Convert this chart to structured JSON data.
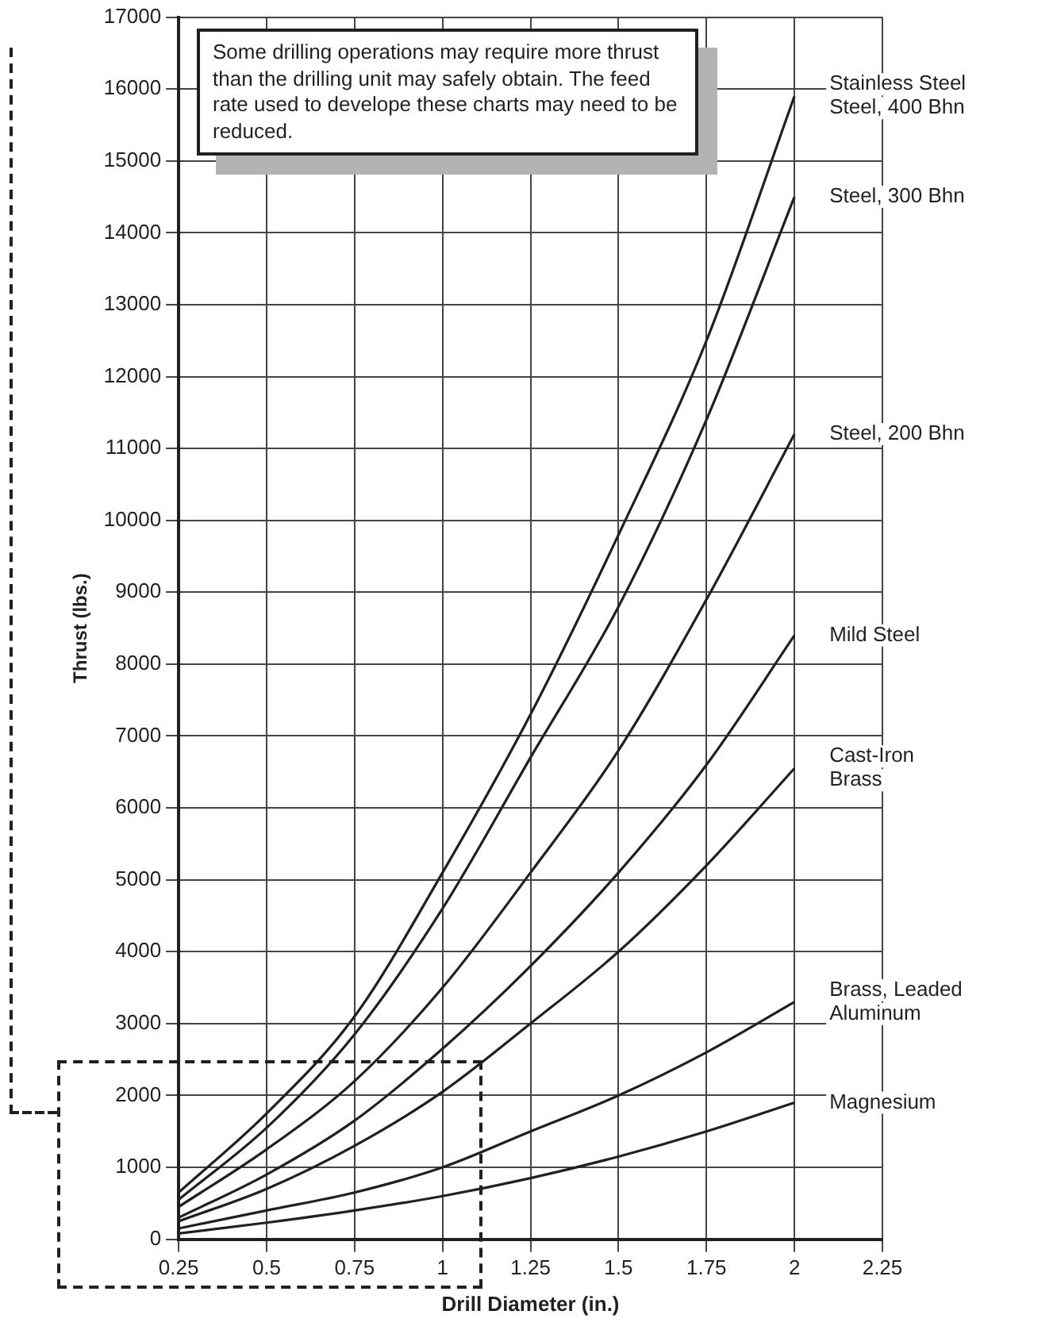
{
  "chart_data": {
    "type": "line",
    "xlabel": "Drill Diameter (in.)",
    "ylabel": "Thrust (lbs.)",
    "x": [
      0.25,
      0.5,
      0.75,
      1,
      1.25,
      1.5,
      1.75,
      2
    ],
    "xlim": [
      0.25,
      2.25
    ],
    "xticks": [
      0.25,
      0.5,
      0.75,
      1,
      1.25,
      1.5,
      1.75,
      2,
      2.25
    ],
    "ylim": [
      0,
      17000
    ],
    "yticks": [
      0,
      1000,
      2000,
      3000,
      4000,
      5000,
      6000,
      7000,
      8000,
      9000,
      10000,
      11000,
      12000,
      13000,
      14000,
      15000,
      16000,
      17000
    ],
    "grid": true,
    "legend": false,
    "marker": "none",
    "line_style": "solid",
    "annotations": [
      "Some drilling operations may require more thrust than the drilling unit may safely obtain. The feed rate used to develope these charts may need to be reduced."
    ],
    "series": [
      {
        "name": "Stainless Steel\nSteel, 400 Bhn",
        "color": "#231f20",
        "values": [
          650,
          1750,
          3100,
          5100,
          7300,
          9800,
          12500,
          15900
        ]
      },
      {
        "name": "Steel, 300 Bhn",
        "color": "#231f20",
        "values": [
          550,
          1550,
          2850,
          4600,
          6700,
          8800,
          11400,
          14500
        ]
      },
      {
        "name": "Steel, 200 Bhn",
        "color": "#231f20",
        "values": [
          450,
          1250,
          2200,
          3500,
          5100,
          6800,
          8900,
          11200
        ]
      },
      {
        "name": "Mild Steel",
        "color": "#231f20",
        "values": [
          300,
          900,
          1650,
          2650,
          3800,
          5100,
          6600,
          8400
        ]
      },
      {
        "name": "Cast-Iron\nBrass",
        "color": "#231f20",
        "values": [
          250,
          700,
          1300,
          2050,
          3000,
          4000,
          5200,
          6550
        ]
      },
      {
        "name": "Brass, Leaded\nAluminum",
        "color": "#231f20",
        "values": [
          150,
          400,
          650,
          1000,
          1500,
          2000,
          2600,
          3300
        ]
      },
      {
        "name": "Magnesium",
        "color": "#231f20",
        "values": [
          80,
          230,
          400,
          600,
          850,
          1150,
          1500,
          1900
        ]
      }
    ]
  }
}
